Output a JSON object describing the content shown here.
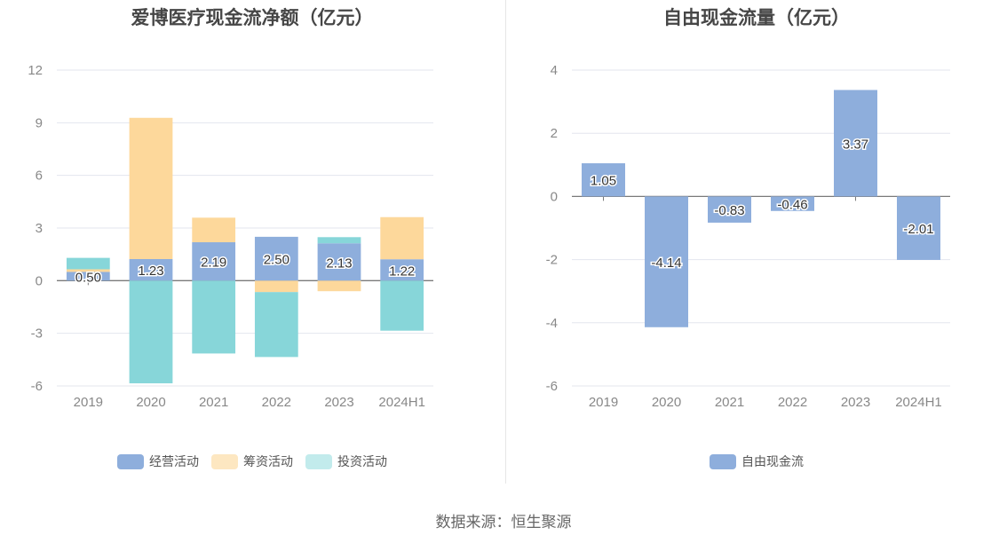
{
  "source_text": "数据来源：恒生聚源",
  "chart_data": [
    {
      "type": "bar",
      "stacked": true,
      "title": "爱博医疗现金流净额（亿元）",
      "categories": [
        "2019",
        "2020",
        "2021",
        "2022",
        "2023",
        "2024H1"
      ],
      "ylim": [
        -6,
        12
      ],
      "yticks": [
        -6,
        -3,
        0,
        3,
        6,
        9,
        12
      ],
      "grid": true,
      "legend_position": "bottom",
      "series": [
        {
          "name": "经营活动",
          "color": "#8eaedc",
          "values": [
            0.5,
            1.23,
            2.19,
            2.5,
            2.13,
            1.22
          ],
          "labeled": true
        },
        {
          "name": "筹资活动",
          "color": "#fdd89b",
          "values": [
            0.15,
            8.05,
            1.4,
            -0.65,
            -0.6,
            2.4
          ],
          "labeled": false
        },
        {
          "name": "投资活动",
          "color": "#87d6d9",
          "values": [
            0.65,
            -5.85,
            -4.15,
            -3.7,
            0.35,
            -2.85
          ],
          "labeled": false
        }
      ],
      "legend": [
        {
          "name": "经营活动",
          "color": "#8eaedc"
        },
        {
          "name": "筹资活动",
          "color": "#fde7c1"
        },
        {
          "name": "投资活动",
          "color": "#c2ebec"
        }
      ]
    },
    {
      "type": "bar",
      "title": "自由现金流量（亿元）",
      "categories": [
        "2019",
        "2020",
        "2021",
        "2022",
        "2023",
        "2024H1"
      ],
      "ylim": [
        -6,
        4
      ],
      "yticks": [
        -6,
        -4,
        -2,
        0,
        2,
        4
      ],
      "grid": true,
      "legend_position": "bottom",
      "series": [
        {
          "name": "自由现金流",
          "color": "#8eaedc",
          "values": [
            1.05,
            -4.14,
            -0.83,
            -0.46,
            3.37,
            -2.01
          ],
          "labeled": true
        }
      ],
      "legend": [
        {
          "name": "自由现金流",
          "color": "#8eaedc"
        }
      ]
    }
  ]
}
